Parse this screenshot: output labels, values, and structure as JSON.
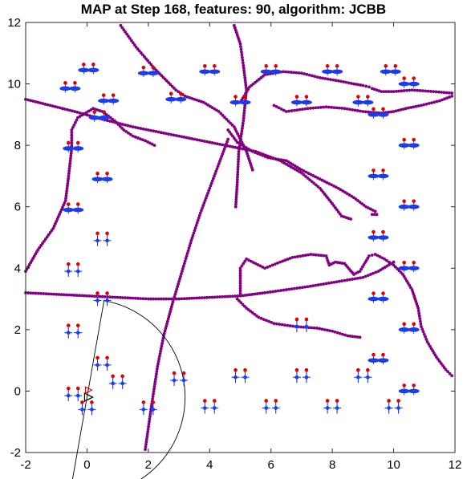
{
  "chart_data": {
    "type": "scatter",
    "title": "MAP at Step 168, features: 90, algorithm: JCBB",
    "xlim": [
      -2,
      12
    ],
    "ylim": [
      -2,
      12
    ],
    "xticks": [
      "-2",
      "0",
      "2",
      "4",
      "6",
      "8",
      "10",
      "12"
    ],
    "yticks": [
      "-2",
      "0",
      "2",
      "4",
      "6",
      "8",
      "10",
      "12"
    ],
    "grid": false,
    "colors": {
      "trajectory": "#800080",
      "landmark_true": "#e00000",
      "landmark_est": "#1a3cf0",
      "sensor_range": "#000000",
      "robot": "#000000",
      "robot_pred": "#e00000"
    },
    "trajectory_paths": [
      {
        "x": [
          1.1,
          1.6,
          2.2,
          2.6,
          2.9,
          3.2,
          3.8,
          4.3,
          4.8,
          5.2,
          5.4
        ],
        "y": [
          11.9,
          11.2,
          10.5,
          10.1,
          9.8,
          9.6,
          9.4,
          9.1,
          8.6,
          7.8,
          7.2
        ]
      },
      {
        "x": [
          5.0,
          5.3,
          5.8,
          6.4,
          7.0,
          7.6,
          8.2,
          8.7,
          9.0,
          9.2,
          9.3,
          9.6,
          10.0,
          10.6,
          11.3,
          11.9
        ],
        "y": [
          9.4,
          9.9,
          10.3,
          10.4,
          10.35,
          10.2,
          10.1,
          10.0,
          9.95,
          9.9,
          9.85,
          9.75,
          9.75,
          9.8,
          9.75,
          9.7
        ]
      },
      {
        "x": [
          4.8,
          5.0,
          5.1,
          5.2,
          5.1,
          4.95,
          4.9,
          4.85
        ],
        "y": [
          11.9,
          11.3,
          10.6,
          9.8,
          8.8,
          7.8,
          6.8,
          6.0
        ]
      },
      {
        "x": [
          6.1,
          6.5,
          7.2,
          7.8,
          8.4,
          9.0,
          9.6,
          10.0,
          10.4,
          10.9,
          11.5,
          11.9
        ],
        "y": [
          9.3,
          9.1,
          9.2,
          9.25,
          9.2,
          9.1,
          9.05,
          9.1,
          9.2,
          9.3,
          9.45,
          9.6
        ]
      },
      {
        "x": [
          4.6,
          4.9,
          5.4,
          5.9,
          6.5,
          7.0,
          7.6,
          8.2,
          8.7,
          9.1,
          9.4,
          9.45,
          9.3
        ],
        "y": [
          8.5,
          8.1,
          7.8,
          7.6,
          7.5,
          7.2,
          6.9,
          6.6,
          6.3,
          6.0,
          5.85,
          5.75,
          5.75
        ]
      },
      {
        "x": [
          4.6,
          4.3,
          4.0,
          3.7,
          3.4,
          3.1,
          2.8,
          2.5,
          2.3,
          2.1,
          1.9
        ],
        "y": [
          8.2,
          7.4,
          6.6,
          5.8,
          4.9,
          3.9,
          2.9,
          1.8,
          0.8,
          -0.5,
          -1.9
        ]
      },
      {
        "x": [
          -2.0,
          -1.2,
          -0.4,
          0.5,
          1.5,
          2.5,
          3.5,
          4.5,
          5.5,
          6.3,
          7.0,
          7.6,
          8.0,
          8.3,
          8.6
        ],
        "y": [
          9.5,
          9.3,
          9.1,
          8.85,
          8.6,
          8.4,
          8.2,
          8.0,
          7.8,
          7.5,
          7.1,
          6.6,
          6.1,
          5.7,
          5.6
        ]
      },
      {
        "x": [
          -2.0,
          -1.6,
          -1.1,
          -0.7,
          -0.6,
          -0.5,
          -0.5,
          -0.3,
          0.2,
          0.5,
          0.9,
          1.2,
          1.5,
          1.9,
          2.2
        ],
        "y": [
          3.9,
          4.6,
          5.3,
          6.2,
          7.0,
          7.9,
          8.5,
          8.9,
          9.2,
          9.1,
          8.8,
          8.5,
          8.3,
          8.15,
          8.0
        ]
      },
      {
        "x": [
          -2.0,
          -1.0,
          0.0,
          1.0,
          2.0,
          3.0,
          4.0,
          5.0,
          5.8,
          6.5,
          7.2,
          7.8,
          8.4,
          9.0,
          9.5,
          10.0
        ],
        "y": [
          3.2,
          3.15,
          3.1,
          3.05,
          3.0,
          3.0,
          3.05,
          3.1,
          3.2,
          3.3,
          3.4,
          3.5,
          3.6,
          3.7,
          3.9,
          4.2
        ]
      },
      {
        "x": [
          5.0,
          5.0,
          5.2,
          5.8,
          6.3,
          6.7,
          7.3,
          7.8,
          7.9,
          8.1,
          8.4,
          8.7,
          8.9,
          9.2,
          9.4,
          9.7,
          10.0,
          10.3,
          10.6,
          10.8,
          10.9,
          11.1,
          11.4,
          11.7,
          11.9
        ],
        "y": [
          3.1,
          4.0,
          4.3,
          4.0,
          4.2,
          4.35,
          4.45,
          4.4,
          4.1,
          4.2,
          4.15,
          3.8,
          3.9,
          4.4,
          4.45,
          4.3,
          4.1,
          3.8,
          3.3,
          2.7,
          2.1,
          1.6,
          1.1,
          0.7,
          0.5
        ]
      },
      {
        "x": [
          4.9,
          5.2,
          5.6,
          6.1,
          6.8,
          7.5,
          8.0,
          8.5,
          8.9
        ],
        "y": [
          3.0,
          2.7,
          2.4,
          2.2,
          2.1,
          2.05,
          1.95,
          1.8,
          1.75
        ]
      }
    ],
    "landmarks": [
      {
        "x": 0.05,
        "y": 10.45,
        "flat": true
      },
      {
        "x": 0.7,
        "y": 9.45,
        "flat": true
      },
      {
        "x": -0.55,
        "y": 9.85,
        "flat": true
      },
      {
        "x": 0.4,
        "y": 8.9,
        "flat": true
      },
      {
        "x": -0.45,
        "y": 7.9,
        "flat": true
      },
      {
        "x": 0.5,
        "y": 6.9,
        "flat": true
      },
      {
        "x": -0.45,
        "y": 5.9,
        "flat": true
      },
      {
        "x": 0.5,
        "y": 4.9,
        "flat": false
      },
      {
        "x": -0.45,
        "y": 3.9,
        "flat": false
      },
      {
        "x": 0.5,
        "y": 2.95,
        "flat": false
      },
      {
        "x": -0.45,
        "y": 1.9,
        "flat": false
      },
      {
        "x": 0.5,
        "y": 0.85,
        "flat": false
      },
      {
        "x": -0.45,
        "y": -0.15,
        "flat": false
      },
      {
        "x": 2.0,
        "y": 10.35,
        "flat": true
      },
      {
        "x": 2.9,
        "y": 9.5,
        "flat": true
      },
      {
        "x": 4.0,
        "y": 10.4,
        "flat": true
      },
      {
        "x": 5.0,
        "y": 9.4,
        "flat": true
      },
      {
        "x": 6.0,
        "y": 10.4,
        "flat": true
      },
      {
        "x": 7.0,
        "y": 9.4,
        "flat": true
      },
      {
        "x": 8.0,
        "y": 10.4,
        "flat": true
      },
      {
        "x": 9.0,
        "y": 9.4,
        "flat": true
      },
      {
        "x": 9.9,
        "y": 10.4,
        "flat": true
      },
      {
        "x": 10.5,
        "y": 10.0,
        "flat": true
      },
      {
        "x": 9.5,
        "y": 9.0,
        "flat": true
      },
      {
        "x": 10.5,
        "y": 8.0,
        "flat": true
      },
      {
        "x": 9.5,
        "y": 7.0,
        "flat": true
      },
      {
        "x": 10.5,
        "y": 6.0,
        "flat": true
      },
      {
        "x": 9.5,
        "y": 5.0,
        "flat": true
      },
      {
        "x": 10.5,
        "y": 4.0,
        "flat": true
      },
      {
        "x": 9.5,
        "y": 3.0,
        "flat": true
      },
      {
        "x": 10.5,
        "y": 2.0,
        "flat": true
      },
      {
        "x": 9.5,
        "y": 1.0,
        "flat": true
      },
      {
        "x": 10.5,
        "y": 0.0,
        "flat": true
      },
      {
        "x": 7.0,
        "y": 2.1,
        "flat": false
      },
      {
        "x": 1.0,
        "y": 0.25,
        "flat": false
      },
      {
        "x": 2.0,
        "y": -0.6,
        "flat": false
      },
      {
        "x": 3.0,
        "y": 0.35,
        "flat": false
      },
      {
        "x": 4.0,
        "y": -0.55,
        "flat": false
      },
      {
        "x": 5.0,
        "y": 0.45,
        "flat": false
      },
      {
        "x": 6.0,
        "y": -0.55,
        "flat": false
      },
      {
        "x": 7.0,
        "y": 0.45,
        "flat": false
      },
      {
        "x": 8.0,
        "y": -0.55,
        "flat": false
      },
      {
        "x": 9.0,
        "y": 0.45,
        "flat": false
      },
      {
        "x": 10.0,
        "y": -0.55,
        "flat": false
      },
      {
        "x": 0.0,
        "y": -0.6,
        "flat": false
      }
    ],
    "robot": {
      "x": 0.0,
      "y": -0.2
    },
    "sensor_range": {
      "radius": 3.2,
      "start_angle_deg": -100,
      "end_angle_deg": 80
    }
  }
}
